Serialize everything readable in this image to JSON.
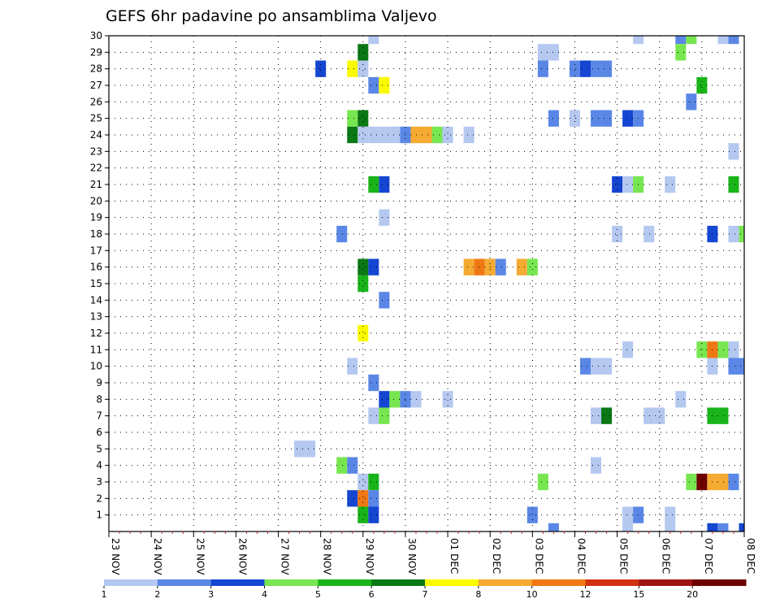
{
  "chart_data": {
    "type": "heatmap",
    "title": "GEFS 6hr padavine po ansamblima Valjevo",
    "xlabel": "",
    "ylabel": "",
    "x_start": "23 NOV 00z",
    "x_step_hours": 6,
    "x_count": 61,
    "x_tick_labels": [
      "23 NOV",
      "24 NOV",
      "25 NOV",
      "26 NOV",
      "27 NOV",
      "28 NOV",
      "29 NOV",
      "30 NOV",
      "01 DEC",
      "02 DEC",
      "03 DEC",
      "04 DEC",
      "05 DEC",
      "06 DEC",
      "07 DEC",
      "08 DEC"
    ],
    "y_tick_labels": [
      "1",
      "2",
      "3",
      "4",
      "5",
      "6",
      "7",
      "8",
      "9",
      "10",
      "11",
      "12",
      "13",
      "14",
      "15",
      "16",
      "17",
      "18",
      "19",
      "20",
      "21",
      "22",
      "23",
      "24",
      "25",
      "26",
      "27",
      "28",
      "29",
      "30"
    ],
    "ylim": [
      0,
      30
    ],
    "grid": true,
    "legend_levels": [
      "1",
      "2",
      "3",
      "4",
      "5",
      "6",
      "7",
      "8",
      "10",
      "12",
      "15",
      "20"
    ],
    "legend_colors": [
      "#b4c8f0",
      "#5a87e6",
      "#1446d2",
      "#78e650",
      "#19b419",
      "#0a7814",
      "#fafa00",
      "#f5aa32",
      "#f07814",
      "#d23214",
      "#a01414",
      "#6e0000"
    ],
    "cells": [
      {
        "member": 30,
        "step": 25,
        "level": 0
      },
      {
        "member": 30,
        "step": 50,
        "level": 0
      },
      {
        "member": 30,
        "step": 54,
        "level": 1
      },
      {
        "member": 30,
        "step": 55,
        "level": 3
      },
      {
        "member": 30,
        "step": 58,
        "level": 0
      },
      {
        "member": 30,
        "step": 59,
        "level": 1
      },
      {
        "member": 29,
        "step": 24,
        "level": 5
      },
      {
        "member": 29,
        "step": 41,
        "level": 0
      },
      {
        "member": 29,
        "step": 42,
        "level": 0
      },
      {
        "member": 29,
        "step": 54,
        "level": 3
      },
      {
        "member": 28,
        "step": 20,
        "level": 2
      },
      {
        "member": 28,
        "step": 23,
        "level": 6
      },
      {
        "member": 28,
        "step": 24,
        "level": 0
      },
      {
        "member": 28,
        "step": 41,
        "level": 1
      },
      {
        "member": 28,
        "step": 44,
        "level": 1
      },
      {
        "member": 28,
        "step": 45,
        "level": 2
      },
      {
        "member": 28,
        "step": 46,
        "level": 1
      },
      {
        "member": 28,
        "step": 47,
        "level": 1
      },
      {
        "member": 27,
        "step": 25,
        "level": 1
      },
      {
        "member": 27,
        "step": 26,
        "level": 6
      },
      {
        "member": 27,
        "step": 56,
        "level": 4
      },
      {
        "member": 26,
        "step": 55,
        "level": 1
      },
      {
        "member": 25,
        "step": 23,
        "level": 3
      },
      {
        "member": 25,
        "step": 24,
        "level": 5
      },
      {
        "member": 25,
        "step": 42,
        "level": 1
      },
      {
        "member": 25,
        "step": 44,
        "level": 0
      },
      {
        "member": 25,
        "step": 46,
        "level": 1
      },
      {
        "member": 25,
        "step": 47,
        "level": 1
      },
      {
        "member": 25,
        "step": 49,
        "level": 2
      },
      {
        "member": 25,
        "step": 50,
        "level": 1
      },
      {
        "member": 24,
        "step": 23,
        "level": 5
      },
      {
        "member": 24,
        "step": 24,
        "level": 0
      },
      {
        "member": 24,
        "step": 25,
        "level": 0
      },
      {
        "member": 24,
        "step": 26,
        "level": 0
      },
      {
        "member": 24,
        "step": 27,
        "level": 0
      },
      {
        "member": 24,
        "step": 28,
        "level": 1
      },
      {
        "member": 24,
        "step": 29,
        "level": 7
      },
      {
        "member": 24,
        "step": 30,
        "level": 7
      },
      {
        "member": 24,
        "step": 31,
        "level": 3
      },
      {
        "member": 24,
        "step": 32,
        "level": 0
      },
      {
        "member": 24,
        "step": 34,
        "level": 0
      },
      {
        "member": 23,
        "step": 59,
        "level": 0
      },
      {
        "member": 21,
        "step": 25,
        "level": 4
      },
      {
        "member": 21,
        "step": 26,
        "level": 2
      },
      {
        "member": 21,
        "step": 48,
        "level": 2
      },
      {
        "member": 21,
        "step": 49,
        "level": 0
      },
      {
        "member": 21,
        "step": 50,
        "level": 3
      },
      {
        "member": 21,
        "step": 53,
        "level": 0
      },
      {
        "member": 21,
        "step": 59,
        "level": 4
      },
      {
        "member": 19,
        "step": 26,
        "level": 0
      },
      {
        "member": 18,
        "step": 22,
        "level": 1
      },
      {
        "member": 18,
        "step": 48,
        "level": 0
      },
      {
        "member": 18,
        "step": 51,
        "level": 0
      },
      {
        "member": 18,
        "step": 57,
        "level": 2
      },
      {
        "member": 18,
        "step": 59,
        "level": 0
      },
      {
        "member": 18,
        "step": 60,
        "level": 3
      },
      {
        "member": 16,
        "step": 24,
        "level": 5
      },
      {
        "member": 16,
        "step": 25,
        "level": 2
      },
      {
        "member": 16,
        "step": 34,
        "level": 7
      },
      {
        "member": 16,
        "step": 35,
        "level": 8
      },
      {
        "member": 16,
        "step": 36,
        "level": 7
      },
      {
        "member": 16,
        "step": 37,
        "level": 1
      },
      {
        "member": 16,
        "step": 39,
        "level": 7
      },
      {
        "member": 16,
        "step": 40,
        "level": 3
      },
      {
        "member": 15,
        "step": 24,
        "level": 4
      },
      {
        "member": 14,
        "step": 26,
        "level": 1
      },
      {
        "member": 12,
        "step": 24,
        "level": 6
      },
      {
        "member": 11,
        "step": 49,
        "level": 0
      },
      {
        "member": 11,
        "step": 56,
        "level": 3
      },
      {
        "member": 11,
        "step": 57,
        "level": 8
      },
      {
        "member": 11,
        "step": 58,
        "level": 3
      },
      {
        "member": 11,
        "step": 59,
        "level": 0
      },
      {
        "member": 10,
        "step": 23,
        "level": 0
      },
      {
        "member": 10,
        "step": 45,
        "level": 1
      },
      {
        "member": 10,
        "step": 46,
        "level": 0
      },
      {
        "member": 10,
        "step": 47,
        "level": 0
      },
      {
        "member": 10,
        "step": 57,
        "level": 0
      },
      {
        "member": 10,
        "step": 59,
        "level": 1
      },
      {
        "member": 10,
        "step": 60,
        "level": 1
      },
      {
        "member": 9,
        "step": 25,
        "level": 1
      },
      {
        "member": 8,
        "step": 26,
        "level": 2
      },
      {
        "member": 8,
        "step": 27,
        "level": 3
      },
      {
        "member": 8,
        "step": 28,
        "level": 1
      },
      {
        "member": 8,
        "step": 29,
        "level": 0
      },
      {
        "member": 8,
        "step": 32,
        "level": 0
      },
      {
        "member": 8,
        "step": 54,
        "level": 0
      },
      {
        "member": 7,
        "step": 25,
        "level": 0
      },
      {
        "member": 7,
        "step": 26,
        "level": 3
      },
      {
        "member": 7,
        "step": 46,
        "level": 0
      },
      {
        "member": 7,
        "step": 47,
        "level": 5
      },
      {
        "member": 7,
        "step": 51,
        "level": 0
      },
      {
        "member": 7,
        "step": 52,
        "level": 0
      },
      {
        "member": 7,
        "step": 57,
        "level": 4
      },
      {
        "member": 7,
        "step": 58,
        "level": 4
      },
      {
        "member": 5,
        "step": 18,
        "level": 0
      },
      {
        "member": 5,
        "step": 19,
        "level": 0
      },
      {
        "member": 4,
        "step": 22,
        "level": 3
      },
      {
        "member": 4,
        "step": 23,
        "level": 1
      },
      {
        "member": 4,
        "step": 46,
        "level": 0
      },
      {
        "member": 3,
        "step": 24,
        "level": 0
      },
      {
        "member": 3,
        "step": 25,
        "level": 4
      },
      {
        "member": 3,
        "step": 41,
        "level": 3
      },
      {
        "member": 3,
        "step": 55,
        "level": 3
      },
      {
        "member": 3,
        "step": 56,
        "level": 11
      },
      {
        "member": 3,
        "step": 57,
        "level": 7
      },
      {
        "member": 3,
        "step": 58,
        "level": 7
      },
      {
        "member": 3,
        "step": 59,
        "level": 1
      },
      {
        "member": 2,
        "step": 23,
        "level": 2
      },
      {
        "member": 2,
        "step": 24,
        "level": 8
      },
      {
        "member": 2,
        "step": 25,
        "level": 1
      },
      {
        "member": 1,
        "step": 24,
        "level": 4
      },
      {
        "member": 1,
        "step": 25,
        "level": 2
      },
      {
        "member": 1,
        "step": 40,
        "level": 1
      },
      {
        "member": 1,
        "step": 49,
        "level": 0
      },
      {
        "member": 1,
        "step": 50,
        "level": 1
      },
      {
        "member": 1,
        "step": 53,
        "level": 0
      },
      {
        "member": 0,
        "step": 42,
        "level": 1
      },
      {
        "member": 0,
        "step": 49,
        "level": 0
      },
      {
        "member": 0,
        "step": 53,
        "level": 0
      },
      {
        "member": 0,
        "step": 57,
        "level": 2
      },
      {
        "member": 0,
        "step": 58,
        "level": 1
      },
      {
        "member": 0,
        "step": 60,
        "level": 2
      }
    ]
  }
}
